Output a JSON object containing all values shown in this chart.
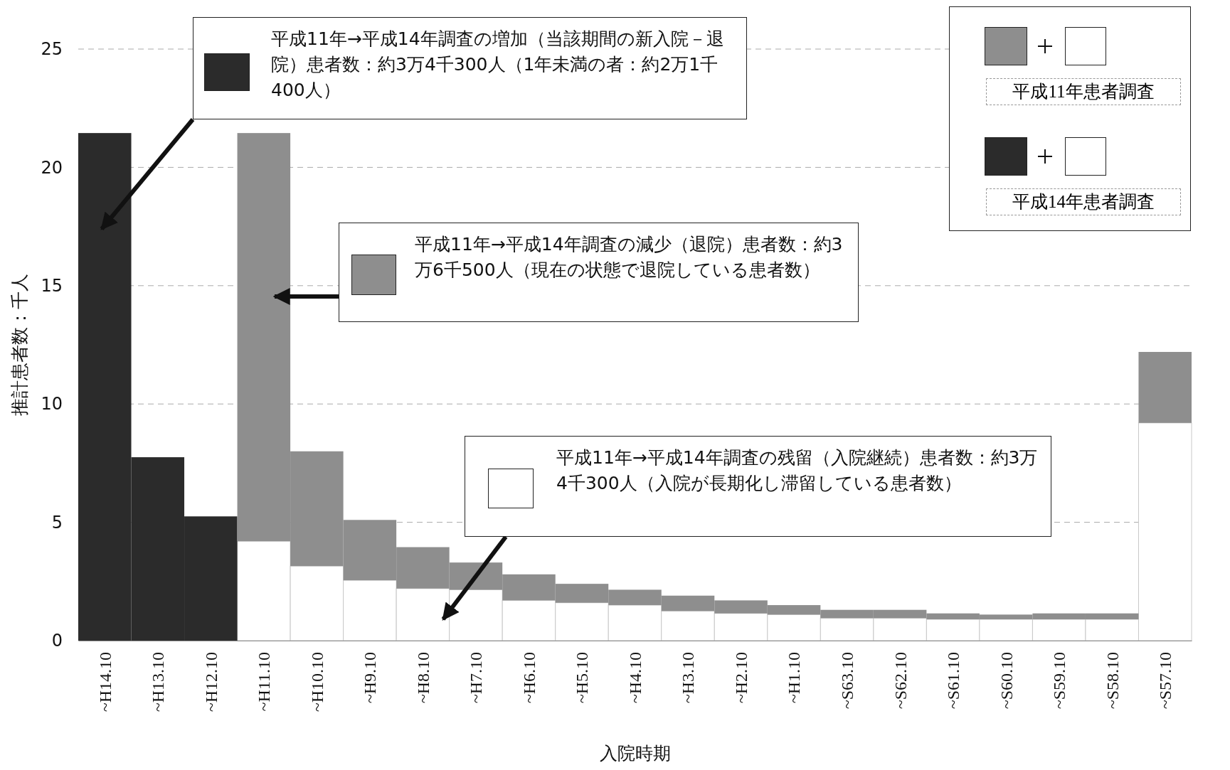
{
  "chart_data": {
    "type": "bar",
    "stacked": true,
    "xlabel": "入院時期",
    "ylabel": "推計患者数：千人",
    "categories": [
      "~H14.10",
      "~H13.10",
      "~H12.10",
      "~H11.10",
      "~H10.10",
      "~H9.10",
      "~H8.10",
      "~H7.10",
      "~H6.10",
      "~H5.10",
      "~H4.10",
      "~H3.10",
      "~H2.10",
      "~H1.10",
      "~S63.10",
      "~S62.10",
      "~S61.10",
      "~S60.10",
      "~S59.10",
      "~S58.10",
      "~S57.10"
    ],
    "series": [
      {
        "color": "#ffffff",
        "values": [
          null,
          null,
          null,
          4.2,
          3.15,
          2.55,
          2.2,
          2.15,
          1.7,
          1.6,
          1.5,
          1.25,
          1.15,
          1.1,
          0.95,
          0.95,
          0.9,
          0.9,
          0.9,
          0.9,
          9.2
        ]
      },
      {
        "color": "#2b2b2b",
        "values": [
          21.45,
          7.75,
          5.25,
          null,
          null,
          null,
          null,
          null,
          null,
          null,
          null,
          null,
          null,
          null,
          null,
          null,
          null,
          null,
          null,
          null,
          null
        ]
      },
      {
        "color": "#8e8e8e",
        "values": [
          null,
          null,
          null,
          17.25,
          4.85,
          2.55,
          1.75,
          1.15,
          1.1,
          0.8,
          0.65,
          0.65,
          0.55,
          0.4,
          0.35,
          0.35,
          0.25,
          0.2,
          0.25,
          0.25,
          3.0
        ]
      }
    ],
    "ylim": [
      0,
      25
    ],
    "yticks": [
      0,
      5,
      10,
      15,
      20,
      25
    ],
    "grid": "y",
    "annotations": [
      "平成11年→平成14年調査の増加（当該期間の新入院－退院）患者数：約3万4千300人（1年未満の者：約2万1千400人）",
      "平成11年→平成14年調査の減少（退院）患者数：約3万6千500人（現在の状態で退院している患者数）",
      "平成11年→平成14年調査の残留（入院継続）患者数：約3万4千300人（入院が長期化し滞留している患者数）",
      "平成11年患者調査",
      "平成14年患者調査"
    ]
  }
}
